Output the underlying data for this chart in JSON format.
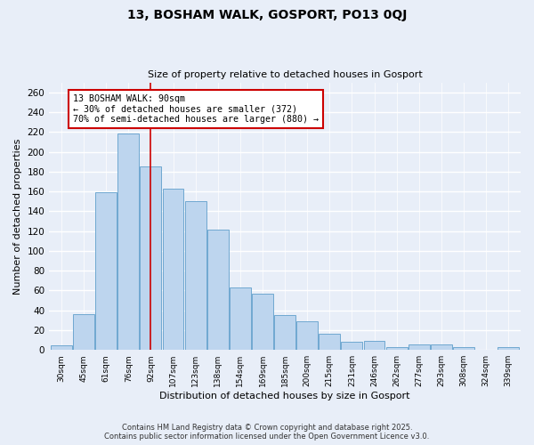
{
  "title": "13, BOSHAM WALK, GOSPORT, PO13 0QJ",
  "subtitle": "Size of property relative to detached houses in Gosport",
  "xlabel": "Distribution of detached houses by size in Gosport",
  "ylabel": "Number of detached properties",
  "categories": [
    "30sqm",
    "45sqm",
    "61sqm",
    "76sqm",
    "92sqm",
    "107sqm",
    "123sqm",
    "138sqm",
    "154sqm",
    "169sqm",
    "185sqm",
    "200sqm",
    "215sqm",
    "231sqm",
    "246sqm",
    "262sqm",
    "277sqm",
    "293sqm",
    "308sqm",
    "324sqm",
    "339sqm"
  ],
  "values": [
    5,
    36,
    159,
    218,
    185,
    163,
    150,
    121,
    63,
    57,
    35,
    29,
    16,
    8,
    9,
    3,
    6,
    6,
    3,
    0,
    3
  ],
  "bar_color": "#bdd5ee",
  "bar_edge_color": "#6fa8d0",
  "highlight_bar_index": 4,
  "highlight_line_color": "#cc0000",
  "annotation_text": "13 BOSHAM WALK: 90sqm\n← 30% of detached houses are smaller (372)\n70% of semi-detached houses are larger (880) →",
  "annotation_box_color": "#ffffff",
  "annotation_box_edge_color": "#cc0000",
  "ylim": [
    0,
    270
  ],
  "yticks": [
    0,
    20,
    40,
    60,
    80,
    100,
    120,
    140,
    160,
    180,
    200,
    220,
    240,
    260
  ],
  "background_color": "#e8eef8",
  "grid_color": "#ffffff",
  "footer_line1": "Contains HM Land Registry data © Crown copyright and database right 2025.",
  "footer_line2": "Contains public sector information licensed under the Open Government Licence v3.0."
}
